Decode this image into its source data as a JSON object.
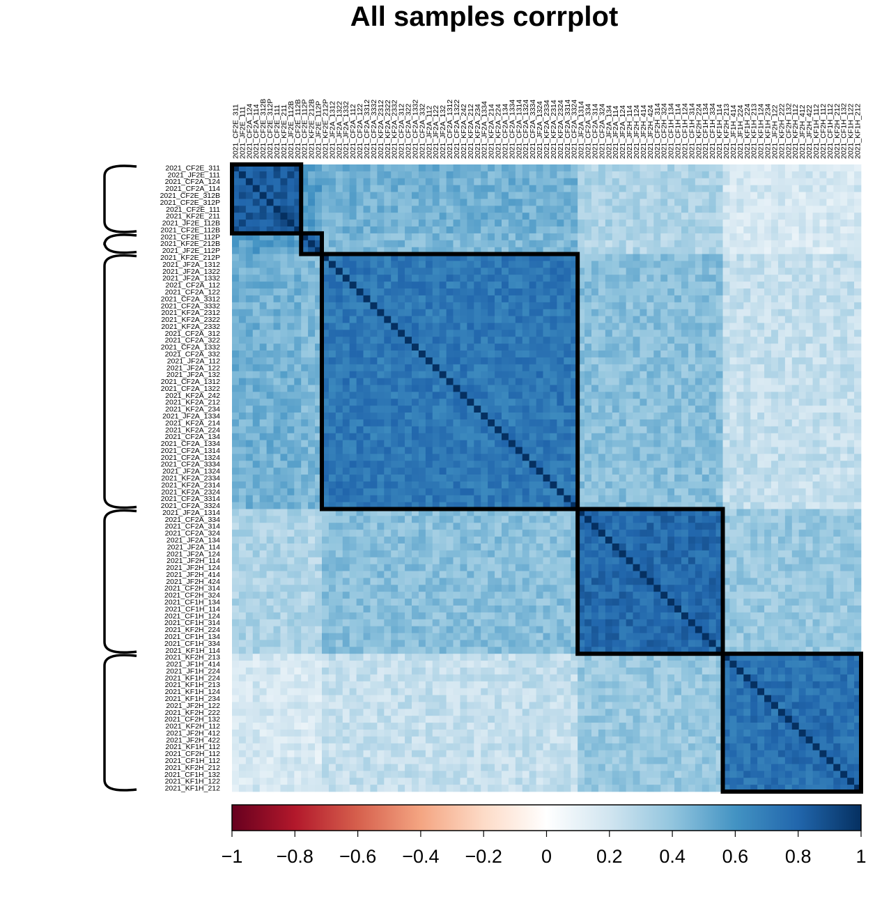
{
  "chart_data": {
    "type": "heatmap",
    "title": "All samples corrplot",
    "xlabel": "",
    "ylabel": "",
    "labels": [
      "2021_CF2E_311",
      "2021_JF2E_111",
      "2021_CF2A_124",
      "2021_CF2A_114",
      "2021_CF2E_312B",
      "2021_CF2E_312P",
      "2021_CF2E_111",
      "2021_KF2E_211",
      "2021_JF2E_112B",
      "2021_CF2E_112B",
      "2021_CF2E_112P",
      "2021_KF2E_212B",
      "2021_JF2E_112P",
      "2021_KF2E_212P",
      "2021_JF2A_1312",
      "2021_JF2A_1322",
      "2021_JF2A_1332",
      "2021_CF2A_112",
      "2021_CF2A_122",
      "2021_CF2A_3312",
      "2021_CF2A_3332",
      "2021_KF2A_2312",
      "2021_KF2A_2322",
      "2021_KF2A_2332",
      "2021_CF2A_312",
      "2021_CF2A_322",
      "2021_CF2A_1332",
      "2021_CF2A_332",
      "2021_JF2A_112",
      "2021_JF2A_122",
      "2021_JF2A_132",
      "2021_CF2A_1312",
      "2021_CF2A_1322",
      "2021_KF2A_242",
      "2021_KF2A_212",
      "2021_KF2A_234",
      "2021_JF2A_1334",
      "2021_KF2A_214",
      "2021_KF2A_224",
      "2021_CF2A_134",
      "2021_CF2A_1334",
      "2021_CF2A_1314",
      "2021_CF2A_1324",
      "2021_CF2A_3334",
      "2021_JF2A_1324",
      "2021_KF2A_2334",
      "2021_KF2A_2314",
      "2021_KF2A_2324",
      "2021_CF2A_3314",
      "2021_CF2A_3324",
      "2021_JF2A_1314",
      "2021_CF2A_334",
      "2021_CF2A_314",
      "2021_CF2A_324",
      "2021_JF2A_134",
      "2021_JF2A_114",
      "2021_JF2A_124",
      "2021_JF2H_114",
      "2021_JF2H_124",
      "2021_JF2H_414",
      "2021_JF2H_424",
      "2021_CF2H_314",
      "2021_CF2H_324",
      "2021_CF1H_134",
      "2021_CF1H_114",
      "2021_CF1H_124",
      "2021_CF1H_314",
      "2021_KF2H_224",
      "2021_CF1H_134",
      "2021_CF1H_334",
      "2021_KF1H_114",
      "2021_KF2H_213",
      "2021_JF1H_414",
      "2021_JF1H_224",
      "2021_KF1H_224",
      "2021_KF1H_213",
      "2021_KF1H_124",
      "2021_KF1H_234",
      "2021_JF2H_122",
      "2021_KF2H_222",
      "2021_CF2H_132",
      "2021_KF2H_112",
      "2021_JF2H_412",
      "2021_JF2H_422",
      "2021_KF1H_112",
      "2021_CF2H_112",
      "2021_CF1H_112",
      "2021_KF2H_212",
      "2021_CF1H_132",
      "2021_KF1H_122",
      "2021_KF1H_212"
    ],
    "cluster_bounds": [
      0,
      10,
      13,
      50,
      71,
      91
    ],
    "block_corr": [
      [
        0.85,
        0.55,
        0.48,
        0.32,
        0.18
      ],
      [
        0.55,
        0.8,
        0.45,
        0.3,
        0.16
      ],
      [
        0.48,
        0.45,
        0.72,
        0.42,
        0.24
      ],
      [
        0.32,
        0.3,
        0.42,
        0.78,
        0.38
      ],
      [
        0.18,
        0.16,
        0.24,
        0.38,
        0.75
      ]
    ],
    "legend": {
      "ticks": [
        "−1",
        "−0.8",
        "−0.6",
        "−0.4",
        "−0.2",
        "0",
        "0.2",
        "0.4",
        "0.6",
        "0.8",
        "1"
      ],
      "range": [
        -1,
        1
      ]
    },
    "colors": {
      "neg": "#67001f",
      "zero": "#ffffff",
      "pos": "#053061",
      "box": "#000000"
    }
  }
}
